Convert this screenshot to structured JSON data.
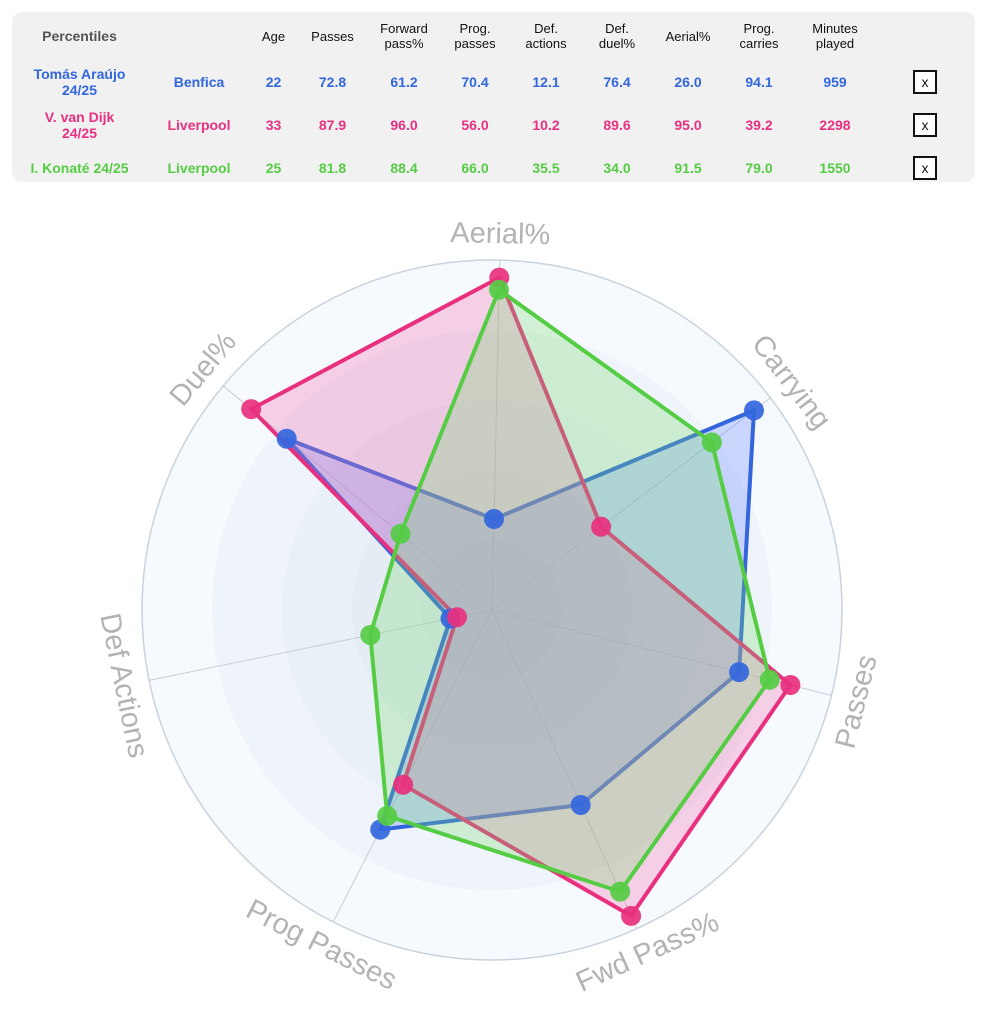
{
  "table": {
    "corner_label": "Percentiles",
    "headers": [
      {
        "line1": "Age",
        "line2": ""
      },
      {
        "line1": "Passes",
        "line2": ""
      },
      {
        "line1": "Forward",
        "line2": "pass%"
      },
      {
        "line1": "Prog.",
        "line2": "passes"
      },
      {
        "line1": "Def.",
        "line2": "actions"
      },
      {
        "line1": "Def.",
        "line2": "duel%"
      },
      {
        "line1": "Aerial%",
        "line2": ""
      },
      {
        "line1": "Prog.",
        "line2": "carries"
      },
      {
        "line1": "Minutes",
        "line2": "played"
      }
    ],
    "remove_label": "x",
    "rows": [
      {
        "player_line1": "Tomás Araújo",
        "player_line2": "24/25",
        "team": "Benfica",
        "color": "#3366dd",
        "cells": [
          "22",
          "72.8",
          "61.2",
          "70.4",
          "12.1",
          "76.4",
          "26.0",
          "94.1",
          "959"
        ]
      },
      {
        "player_line1": "V. van Dijk",
        "player_line2": "24/25",
        "team": "Liverpool",
        "color": "#e8307e",
        "cells": [
          "33",
          "87.9",
          "96.0",
          "56.0",
          "10.2",
          "89.6",
          "95.0",
          "39.2",
          "2298"
        ]
      },
      {
        "player_line1": "I. Konaté 24/25",
        "player_line2": "",
        "team": "Liverpool",
        "color": "#55cc44",
        "cells": [
          "25",
          "81.8",
          "88.4",
          "66.0",
          "35.5",
          "34.0",
          "91.5",
          "79.0",
          "1550"
        ]
      }
    ]
  },
  "chart_data": {
    "type": "radar",
    "axes": [
      "Aerial%",
      "Carrying",
      "Passes",
      "Fwd Pass%",
      "Prog Passes",
      "Def Actions",
      "Duel%"
    ],
    "range": [
      0,
      100
    ],
    "series": [
      {
        "name": "Tomás Araújo 24/25",
        "color": "#3366dd",
        "fill": "rgba(110,140,255,0.32)",
        "values": [
          26.0,
          94.1,
          72.8,
          61.2,
          70.4,
          12.1,
          76.4
        ]
      },
      {
        "name": "V. van Dijk 24/25",
        "color": "#e8307e",
        "fill": "rgba(240,110,180,0.30)",
        "values": [
          95.0,
          39.2,
          87.9,
          96.0,
          56.0,
          10.2,
          89.6
        ]
      },
      {
        "name": "I. Konaté 24/25",
        "color": "#55cc44",
        "fill": "rgba(120,220,110,0.28)",
        "values": [
          91.5,
          79.0,
          81.8,
          88.4,
          66.0,
          35.5,
          34.0
        ]
      }
    ]
  }
}
